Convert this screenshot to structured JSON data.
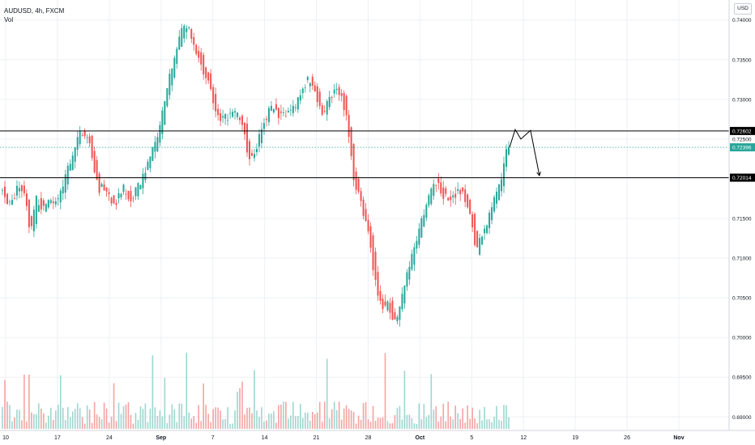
{
  "legend": {
    "symbol_line": "AUDUSD, 4h, FXCM",
    "indicator": "Vol"
  },
  "currency_button": "USD",
  "colors": {
    "up": "#26a69a",
    "down": "#ef5350",
    "vol_up": "#9fd6d0",
    "vol_down": "#f4a4a2",
    "grid": "#eef0f3",
    "hline": "#000000",
    "current_tag": "#26a69a",
    "current_line": "#26a69a"
  },
  "chart_data": {
    "type": "candlestick",
    "timeframe": "4h",
    "x_tick_labels": [
      "10",
      "17",
      "24",
      "Sep",
      "7",
      "14",
      "21",
      "28",
      "Oct",
      "5",
      "12",
      "19",
      "26",
      "Nov"
    ],
    "y_tick_labels": [
      "0.74000",
      "0.73500",
      "0.73000",
      "0.72500",
      "0.72000",
      "0.71500",
      "0.71000",
      "0.70500",
      "0.70000",
      "0.69500",
      "0.69000"
    ],
    "ylim": [
      0.6885,
      0.7415
    ],
    "close_path": [
      {
        "bar": 0,
        "price": 0.7196
      },
      {
        "bar": 8,
        "price": 0.7165
      },
      {
        "bar": 16,
        "price": 0.7178
      },
      {
        "bar": 22,
        "price": 0.719
      },
      {
        "bar": 30,
        "price": 0.7175
      },
      {
        "bar": 37,
        "price": 0.7128
      },
      {
        "bar": 44,
        "price": 0.7178
      },
      {
        "bar": 52,
        "price": 0.7158
      },
      {
        "bar": 58,
        "price": 0.7175
      },
      {
        "bar": 64,
        "price": 0.717
      },
      {
        "bar": 70,
        "price": 0.717
      },
      {
        "bar": 78,
        "price": 0.7195
      },
      {
        "bar": 88,
        "price": 0.723
      },
      {
        "bar": 98,
        "price": 0.7255
      },
      {
        "bar": 106,
        "price": 0.726
      },
      {
        "bar": 114,
        "price": 0.7225
      },
      {
        "bar": 120,
        "price": 0.7188
      },
      {
        "bar": 128,
        "price": 0.7188
      },
      {
        "bar": 136,
        "price": 0.7175
      },
      {
        "bar": 144,
        "price": 0.7172
      },
      {
        "bar": 152,
        "price": 0.7188
      },
      {
        "bar": 160,
        "price": 0.7172
      },
      {
        "bar": 168,
        "price": 0.7185
      },
      {
        "bar": 176,
        "price": 0.7203
      },
      {
        "bar": 184,
        "price": 0.7225
      },
      {
        "bar": 194,
        "price": 0.7255
      },
      {
        "bar": 204,
        "price": 0.73
      },
      {
        "bar": 214,
        "price": 0.7355
      },
      {
        "bar": 222,
        "price": 0.738
      },
      {
        "bar": 230,
        "price": 0.7395
      },
      {
        "bar": 238,
        "price": 0.737
      },
      {
        "bar": 248,
        "price": 0.7345
      },
      {
        "bar": 256,
        "price": 0.7325
      },
      {
        "bar": 264,
        "price": 0.729
      },
      {
        "bar": 272,
        "price": 0.727
      },
      {
        "bar": 282,
        "price": 0.728
      },
      {
        "bar": 292,
        "price": 0.7282
      },
      {
        "bar": 300,
        "price": 0.7265
      },
      {
        "bar": 308,
        "price": 0.722
      },
      {
        "bar": 316,
        "price": 0.7238
      },
      {
        "bar": 324,
        "price": 0.727
      },
      {
        "bar": 334,
        "price": 0.729
      },
      {
        "bar": 344,
        "price": 0.7282
      },
      {
        "bar": 354,
        "price": 0.7282
      },
      {
        "bar": 364,
        "price": 0.7288
      },
      {
        "bar": 374,
        "price": 0.7318
      },
      {
        "bar": 382,
        "price": 0.7325
      },
      {
        "bar": 390,
        "price": 0.731
      },
      {
        "bar": 398,
        "price": 0.7278
      },
      {
        "bar": 406,
        "price": 0.73
      },
      {
        "bar": 414,
        "price": 0.7315
      },
      {
        "bar": 422,
        "price": 0.7308
      },
      {
        "bar": 430,
        "price": 0.7265
      },
      {
        "bar": 436,
        "price": 0.7205
      },
      {
        "bar": 442,
        "price": 0.7185
      },
      {
        "bar": 448,
        "price": 0.716
      },
      {
        "bar": 456,
        "price": 0.7125
      },
      {
        "bar": 462,
        "price": 0.708
      },
      {
        "bar": 468,
        "price": 0.7045
      },
      {
        "bar": 474,
        "price": 0.7038
      },
      {
        "bar": 480,
        "price": 0.7042
      },
      {
        "bar": 486,
        "price": 0.702
      },
      {
        "bar": 490,
        "price": 0.7025
      },
      {
        "bar": 496,
        "price": 0.705
      },
      {
        "bar": 504,
        "price": 0.7085
      },
      {
        "bar": 512,
        "price": 0.7115
      },
      {
        "bar": 520,
        "price": 0.7145
      },
      {
        "bar": 530,
        "price": 0.718
      },
      {
        "bar": 538,
        "price": 0.7198
      },
      {
        "bar": 546,
        "price": 0.7182
      },
      {
        "bar": 552,
        "price": 0.7175
      },
      {
        "bar": 560,
        "price": 0.7178
      },
      {
        "bar": 568,
        "price": 0.7188
      },
      {
        "bar": 576,
        "price": 0.7172
      },
      {
        "bar": 582,
        "price": 0.715
      },
      {
        "bar": 588,
        "price": 0.7108
      },
      {
        "bar": 594,
        "price": 0.7128
      },
      {
        "bar": 600,
        "price": 0.714
      },
      {
        "bar": 608,
        "price": 0.7165
      },
      {
        "bar": 614,
        "price": 0.7178
      },
      {
        "bar": 620,
        "price": 0.7205
      },
      {
        "bar": 626,
        "price": 0.724
      },
      {
        "bar": 629,
        "price": 0.72396
      }
    ],
    "bar_span": [
      0,
      629
    ],
    "horizontal_lines": [
      {
        "price": 0.72602,
        "label": "0.72602"
      },
      {
        "price": 0.72014,
        "label": "0.72014"
      }
    ],
    "current_price": {
      "price": 0.72396,
      "label": "0.72396"
    },
    "projection_path": [
      {
        "bar": 629,
        "price": 0.72396
      },
      {
        "bar": 636,
        "price": 0.7262
      },
      {
        "bar": 643,
        "price": 0.725
      },
      {
        "bar": 655,
        "price": 0.7261
      },
      {
        "bar": 666,
        "price": 0.7204
      }
    ]
  }
}
